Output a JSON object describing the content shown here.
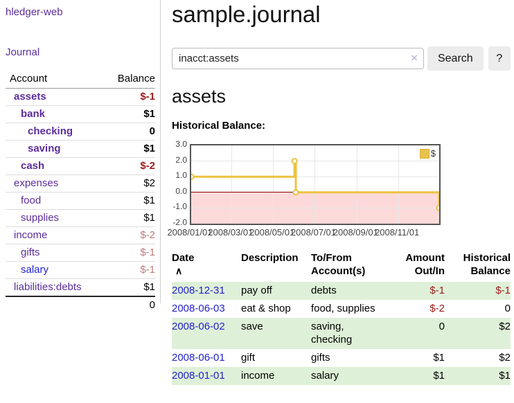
{
  "colors": {
    "accent_purple": "#5c2d9c",
    "link_blue": "#2222cc",
    "negative_strong": "#9c1b1b",
    "negative_muted": "#bd7c7c",
    "row_highlight_green": "#dff0d8",
    "chart_line_gold": "#edc240",
    "chart_negative_area": "#fcdada",
    "chart_zero_line": "#8b0000"
  },
  "sidebar": {
    "app_title": "hledger-web",
    "journal_link": "Journal",
    "table": {
      "account_header": "Account",
      "balance_header": "Balance",
      "rows": [
        {
          "name": "assets",
          "balance": "$-1"
        },
        {
          "name": "bank",
          "balance": "$1"
        },
        {
          "name": "checking",
          "balance": "0"
        },
        {
          "name": "saving",
          "balance": "$1"
        },
        {
          "name": "cash",
          "balance": "$-2"
        },
        {
          "name": "expenses",
          "balance": "$2"
        },
        {
          "name": "food",
          "balance": "$1"
        },
        {
          "name": "supplies",
          "balance": "$1"
        },
        {
          "name": "income",
          "balance": "$-2"
        },
        {
          "name": "gifts",
          "balance": "$-1"
        },
        {
          "name": "salary",
          "balance": "$-1"
        },
        {
          "name": "liabilities:debts",
          "balance": "$1"
        }
      ],
      "total": "0"
    }
  },
  "main": {
    "title": "sample.journal",
    "search": {
      "value": "inacct:assets",
      "clear_icon": "×",
      "search_button": "Search",
      "help_button": "?"
    },
    "account_heading": "assets",
    "chart_label": "Historical Balance:",
    "register": {
      "headers": {
        "date": "Date",
        "sort_icon": "∧",
        "description": "Description",
        "tofrom_line1": "To/From",
        "tofrom_line2": "Account(s)",
        "amount_line1": "Amount",
        "amount_line2": "Out/In",
        "hist_line1": "Historical",
        "hist_line2": "Balance"
      },
      "rows": [
        {
          "date": "2008-12-31",
          "description": "pay off",
          "accounts": "debts",
          "amount": "$-1",
          "balance": "$-1"
        },
        {
          "date": "2008-06-03",
          "description": "eat & shop",
          "accounts": "food, supplies",
          "amount": "$-2",
          "balance": "0"
        },
        {
          "date": "2008-06-02",
          "description": "save",
          "accounts": "saving, checking",
          "amount": "0",
          "balance": "$2"
        },
        {
          "date": "2008-06-01",
          "description": "gift",
          "accounts": "gifts",
          "amount": "$1",
          "balance": "$2"
        },
        {
          "date": "2008-01-01",
          "description": "income",
          "accounts": "salary",
          "amount": "$1",
          "balance": "$1"
        }
      ]
    }
  },
  "chart_data": {
    "type": "line",
    "mode": "steps",
    "title": "Historical Balance",
    "legend": [
      "$"
    ],
    "ylim": [
      -2,
      3
    ],
    "y_ticks": [
      3.0,
      2.0,
      1.0,
      0.0,
      -1.0,
      -2.0
    ],
    "x_ticks": [
      {
        "day": 0,
        "label": "2008/01/01"
      },
      {
        "day": 60,
        "label": "2008/03/01"
      },
      {
        "day": 121,
        "label": "2008/05/01"
      },
      {
        "day": 182,
        "label": "2008/07/01"
      },
      {
        "day": 244,
        "label": "2008/09/01"
      },
      {
        "day": 305,
        "label": "2008/11/01"
      }
    ],
    "x_max_day": 365,
    "points": [
      {
        "date": "2008-01-01",
        "day": 0,
        "value": 1
      },
      {
        "date": "2008-06-01",
        "day": 152,
        "value": 2
      },
      {
        "date": "2008-06-03",
        "day": 154,
        "value": 0
      },
      {
        "date": "2008-12-31",
        "day": 365,
        "value": -1
      }
    ]
  }
}
